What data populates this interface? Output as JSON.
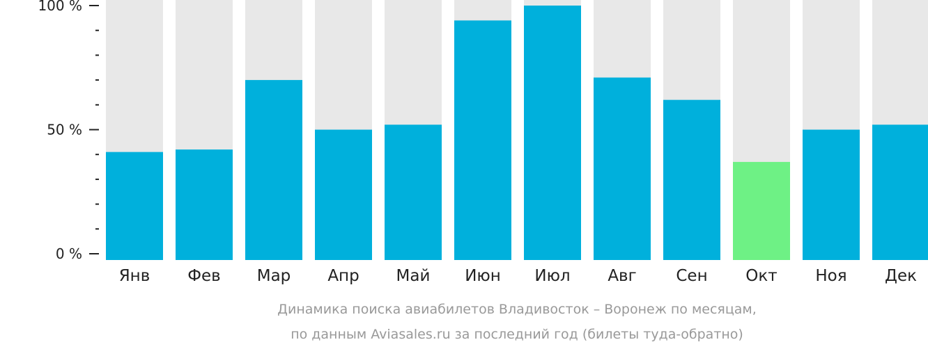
{
  "chart_data": {
    "type": "bar",
    "categories": [
      "Янв",
      "Фев",
      "Мар",
      "Апр",
      "Май",
      "Июн",
      "Июл",
      "Авг",
      "Сен",
      "Окт",
      "Ноя",
      "Дек"
    ],
    "values": [
      41,
      42,
      70,
      50,
      52,
      94,
      100,
      71,
      62,
      37,
      50,
      52
    ],
    "ylim": [
      0,
      100
    ],
    "y_ticks": [
      {
        "value": 0,
        "label": "0 %"
      },
      {
        "value": 50,
        "label": "50 %"
      },
      {
        "value": 100,
        "label": "100 %"
      }
    ],
    "minor_tick_step": 10,
    "highlight_index": 9,
    "colors": {
      "bar": "#00b0dc",
      "highlight": "#6ef185",
      "background_bar": "#e8e8e8",
      "axis": "#222222"
    }
  },
  "caption": {
    "line1": "Динамика поиска авиабилетов Владивосток – Воронеж по месяцам,",
    "line2": "по данным Aviasales.ru за последний год (билеты туда-обратно)"
  }
}
